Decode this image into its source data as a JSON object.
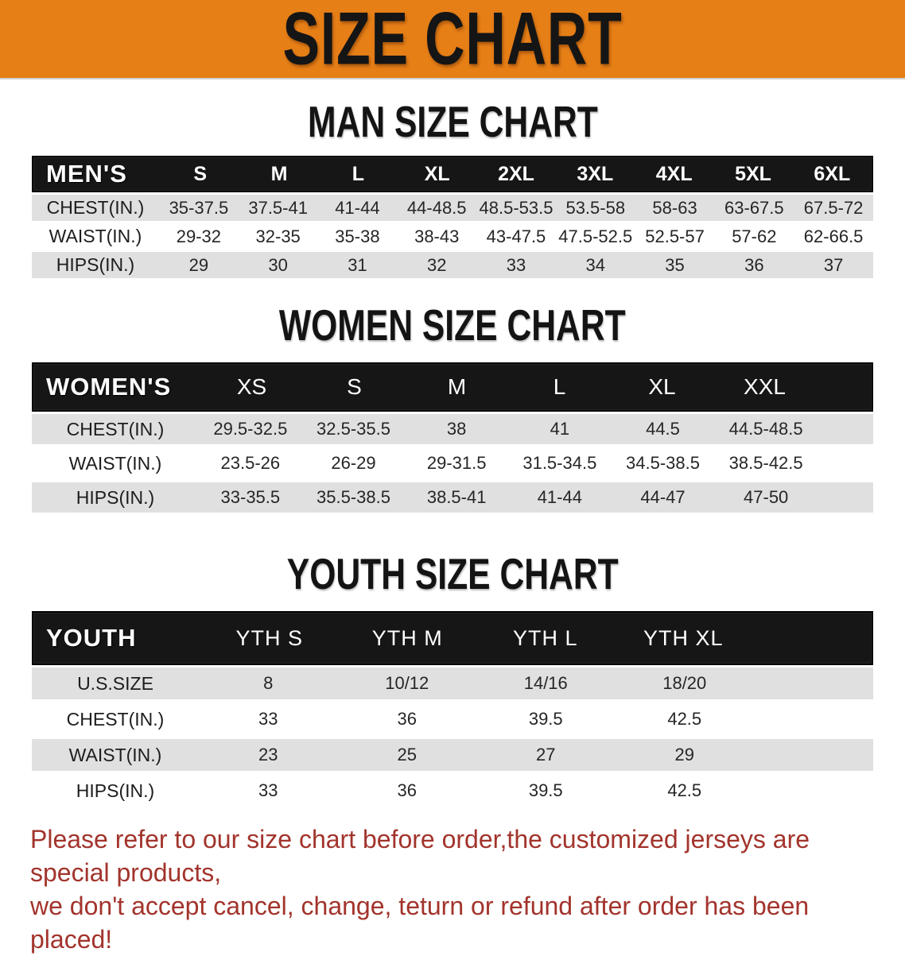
{
  "banner": {
    "title": "SIZE CHART"
  },
  "colors": {
    "banner_bg": "#E77F17",
    "header_bar": "#161616",
    "row_gray": "#E0E0E0",
    "disclaimer_red": "#A2342C",
    "heading_text": "#141414"
  },
  "sections": [
    {
      "heading": "MAN SIZE CHART",
      "table": {
        "header": [
          "MEN'S",
          "S",
          "M",
          "L",
          "XL",
          "2XL",
          "3XL",
          "4XL",
          "5XL",
          "6XL"
        ],
        "rows": [
          {
            "label": "CHEST(IN.)",
            "values": [
              "35-37.5",
              "37.5-41",
              "41-44",
              "44-48.5",
              "48.5-53.5",
              "53.5-58",
              "58-63",
              "63-67.5",
              "67.5-72"
            ]
          },
          {
            "label": "WAIST(IN.)",
            "values": [
              "29-32",
              "32-35",
              "35-38",
              "38-43",
              "43-47.5",
              "47.5-52.5",
              "52.5-57",
              "57-62",
              "62-66.5"
            ]
          },
          {
            "label": "HIPS(IN.)",
            "values": [
              "29",
              "30",
              "31",
              "32",
              "33",
              "34",
              "35",
              "36",
              "37"
            ]
          }
        ]
      }
    },
    {
      "heading": "WOMEN SIZE CHART",
      "table": {
        "header": [
          "WOMEN'S",
          "XS",
          "S",
          "M",
          "L",
          "XL",
          "XXL"
        ],
        "rows": [
          {
            "label": "CHEST(IN.)",
            "values": [
              "29.5-32.5",
              "32.5-35.5",
              "38",
              "41",
              "44.5",
              "44.5-48.5"
            ]
          },
          {
            "label": "WAIST(IN.)",
            "values": [
              "23.5-26",
              "26-29",
              "29-31.5",
              "31.5-34.5",
              "34.5-38.5",
              "38.5-42.5"
            ]
          },
          {
            "label": "HIPS(IN.)",
            "values": [
              "33-35.5",
              "35.5-38.5",
              "38.5-41",
              "41-44",
              "44-47",
              "47-50"
            ]
          }
        ]
      }
    },
    {
      "heading": "YOUTH SIZE CHART",
      "table": {
        "header": [
          "YOUTH",
          "YTH S",
          "YTH M",
          "YTH L",
          "YTH XL"
        ],
        "rows": [
          {
            "label": "U.S.SIZE",
            "values": [
              "8",
              "10/12",
              "14/16",
              "18/20"
            ]
          },
          {
            "label": "CHEST(IN.)",
            "values": [
              "33",
              "36",
              "39.5",
              "42.5"
            ]
          },
          {
            "label": "WAIST(IN.)",
            "values": [
              "23",
              "25",
              "27",
              "29"
            ]
          },
          {
            "label": "HIPS(IN.)",
            "values": [
              "33",
              "36",
              "39.5",
              "42.5"
            ]
          }
        ]
      }
    }
  ],
  "disclaimer": {
    "line1": "Please refer to our size chart before order,the customized jerseys are special products,",
    "line2": "we don't accept cancel, change, teturn or refund after order has been placed!"
  }
}
